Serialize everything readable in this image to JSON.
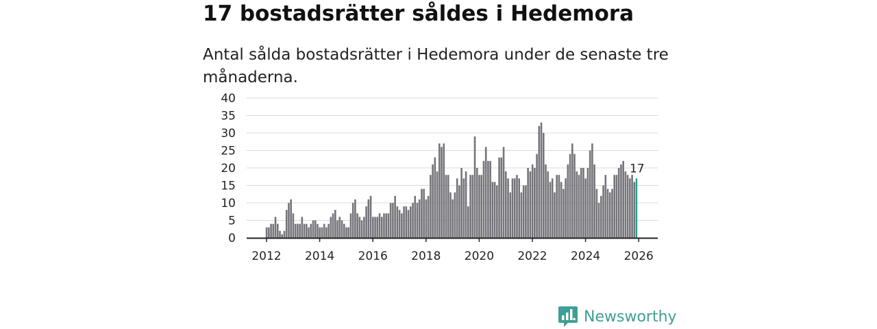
{
  "header": {
    "title": "17 bostadsrätter såldes i Hedemora",
    "subtitle": "Antal sålda bostadsrätter i Hedemora under de senaste tre månaderna."
  },
  "brand": {
    "name": "Newsworthy",
    "color": "#3f9e95"
  },
  "colors": {
    "bar": "#75747a",
    "highlight": "#1f9e94",
    "grid": "#d8d8d8",
    "axis": "#222222"
  },
  "chart_data": {
    "type": "bar",
    "title": "17 bostadsrätter såldes i Hedemora",
    "subtitle": "Antal sålda bostadsrätter i Hedemora under de senaste tre månaderna.",
    "xlabel": "",
    "ylabel": "",
    "ylim": [
      0,
      40
    ],
    "yticks": [
      0,
      5,
      10,
      15,
      20,
      25,
      30,
      35,
      40
    ],
    "xticks": [
      "2012",
      "2014",
      "2016",
      "2018",
      "2020",
      "2022",
      "2024",
      "2026"
    ],
    "x_start": "2012-01",
    "x_end": "2025-12",
    "grid": true,
    "highlight_label": "17",
    "values": [
      3,
      3,
      4,
      4,
      6,
      4,
      2,
      1,
      2,
      8,
      10,
      11,
      7,
      4,
      4,
      4,
      6,
      4,
      4,
      3,
      4,
      5,
      5,
      4,
      3,
      3,
      4,
      3,
      4,
      6,
      7,
      8,
      5,
      6,
      5,
      4,
      3,
      3,
      7,
      10,
      11,
      7,
      6,
      5,
      6,
      9,
      11,
      12,
      6,
      6,
      6,
      7,
      6,
      7,
      7,
      7,
      10,
      10,
      12,
      9,
      8,
      7,
      9,
      9,
      8,
      9,
      10,
      12,
      10,
      11,
      14,
      14,
      11,
      12,
      18,
      21,
      23,
      19,
      27,
      26,
      27,
      18,
      18,
      13,
      11,
      13,
      17,
      15,
      20,
      17,
      19,
      9,
      18,
      18,
      29,
      20,
      18,
      18,
      22,
      26,
      22,
      22,
      16,
      16,
      15,
      23,
      23,
      26,
      19,
      17,
      13,
      17,
      17,
      18,
      17,
      13,
      15,
      15,
      20,
      19,
      21,
      20,
      24,
      32,
      33,
      30,
      21,
      19,
      16,
      17,
      13,
      18,
      18,
      16,
      14,
      17,
      21,
      24,
      27,
      24,
      19,
      18,
      20,
      20,
      17,
      20,
      25,
      27,
      21,
      14,
      10,
      12,
      15,
      18,
      14,
      13,
      14,
      18,
      18,
      20,
      21,
      22,
      19,
      18,
      17,
      18,
      16,
      17
    ]
  }
}
